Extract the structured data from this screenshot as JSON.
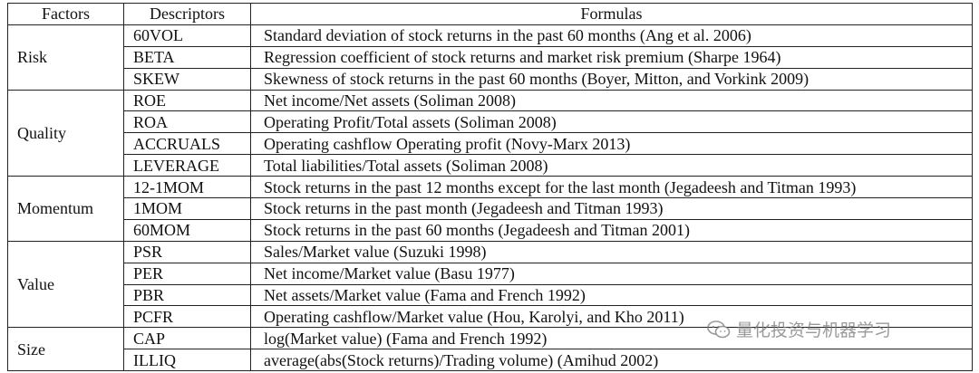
{
  "headers": {
    "factors": "Factors",
    "descriptors": "Descriptors",
    "formulas": "Formulas"
  },
  "groups": [
    {
      "factor": "Risk",
      "rows": [
        {
          "descriptor": "60VOL",
          "formula": "Standard deviation of stock returns in the past 60 months (Ang et al. 2006)"
        },
        {
          "descriptor": "BETA",
          "formula": "Regression coefficient of stock returns and market risk premium (Sharpe 1964)"
        },
        {
          "descriptor": "SKEW",
          "formula": "Skewness of stock returns in the past 60 months (Boyer, Mitton, and Vorkink 2009)"
        }
      ]
    },
    {
      "factor": "Quality",
      "rows": [
        {
          "descriptor": "ROE",
          "formula": "Net income/Net assets (Soliman 2008)"
        },
        {
          "descriptor": "ROA",
          "formula": "Operating Profit/Total assets (Soliman 2008)"
        },
        {
          "descriptor": "ACCRUALS",
          "formula": "Operating cashflow  Operating profit (Novy-Marx 2013)"
        },
        {
          "descriptor": "LEVERAGE",
          "formula": "Total liabilities/Total assets (Soliman 2008)"
        }
      ]
    },
    {
      "factor": "Momentum",
      "rows": [
        {
          "descriptor": "12-1MOM",
          "formula": "Stock returns in the past 12 months except for the last month (Jegadeesh and Titman 1993)"
        },
        {
          "descriptor": "1MOM",
          "formula": "Stock returns in the past month (Jegadeesh and Titman 1993)"
        },
        {
          "descriptor": "60MOM",
          "formula": "Stock returns in the past 60 months (Jegadeesh and Titman 2001)"
        }
      ]
    },
    {
      "factor": "Value",
      "rows": [
        {
          "descriptor": "PSR",
          "formula": "Sales/Market value (Suzuki 1998)"
        },
        {
          "descriptor": "PER",
          "formula": "Net income/Market value (Basu 1977)"
        },
        {
          "descriptor": "PBR",
          "formula": "Net assets/Market value (Fama and French 1992)"
        },
        {
          "descriptor": "PCFR",
          "formula": "Operating cashflow/Market value (Hou, Karolyi, and Kho 2011)"
        }
      ]
    },
    {
      "factor": "Size",
      "rows": [
        {
          "descriptor": "CAP",
          "formula": "log(Market value) (Fama and French 1992)"
        },
        {
          "descriptor": "ILLIQ",
          "formula": "average(abs(Stock returns)/Trading volume) (Amihud 2002)"
        }
      ]
    }
  ],
  "watermark": {
    "text": "量化投资与机器学习",
    "icon": "wechat-icon"
  }
}
